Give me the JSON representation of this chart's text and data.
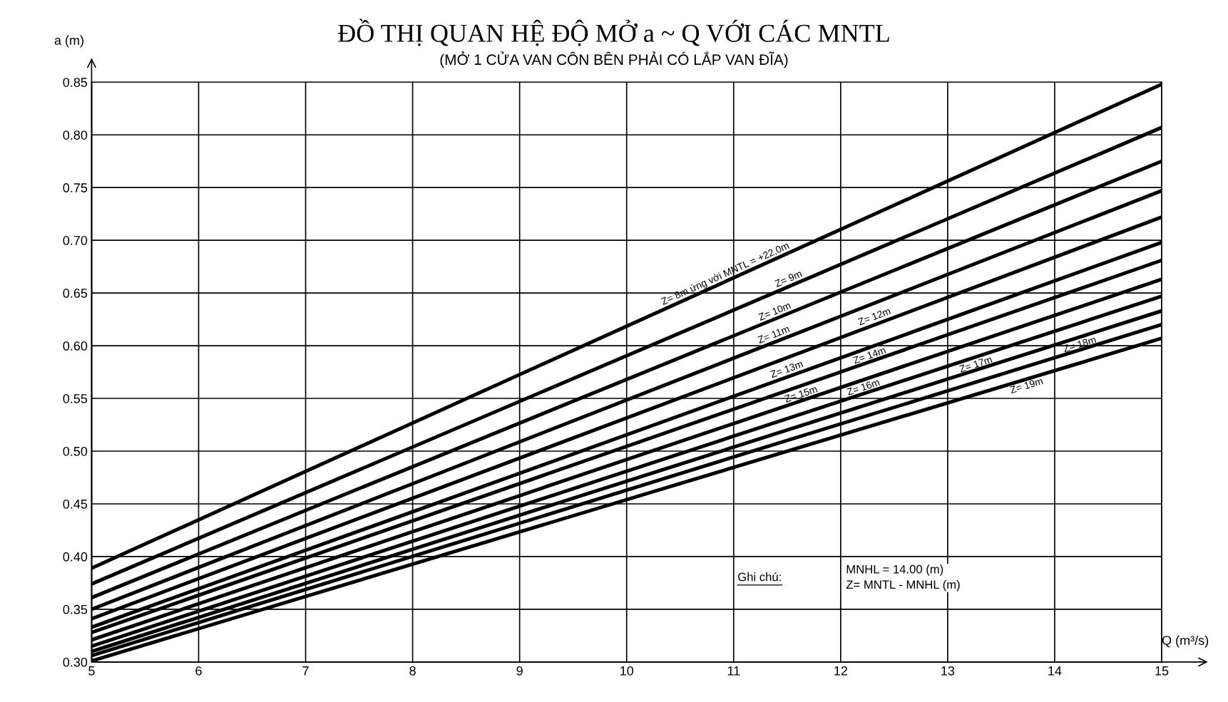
{
  "chart_data": {
    "type": "line",
    "title": "ĐỒ THỊ QUAN HỆ ĐỘ MỞ a ~ Q VỚI CÁC MNTL",
    "subtitle": "(MỞ 1 CỬA VAN CÔN BÊN PHẢI CÓ LẮP VAN ĐĨA)",
    "xlabel": "Q (m³/s)",
    "ylabel": "a (m)",
    "x": [
      5,
      15
    ],
    "series": [
      {
        "color": "#000000",
        "values": [
          0.389,
          0.848
        ]
      },
      {
        "color": "#000000",
        "values": [
          0.374,
          0.807
        ]
      },
      {
        "color": "#000000",
        "values": [
          0.361,
          0.775
        ]
      },
      {
        "color": "#000000",
        "values": [
          0.35,
          0.747
        ]
      },
      {
        "color": "#000000",
        "values": [
          0.341,
          0.722
        ]
      },
      {
        "color": "#000000",
        "values": [
          0.333,
          0.698
        ]
      },
      {
        "color": "#000000",
        "values": [
          0.328,
          0.681
        ]
      },
      {
        "color": "#000000",
        "values": [
          0.321,
          0.663
        ]
      },
      {
        "color": "#000000",
        "values": [
          0.315,
          0.647
        ]
      },
      {
        "color": "#000000",
        "values": [
          0.31,
          0.633
        ]
      },
      {
        "color": "#000000",
        "values": [
          0.306,
          0.62
        ]
      },
      {
        "color": "#000000",
        "values": [
          0.301,
          0.607
        ]
      }
    ],
    "annotations": [
      {
        "text": "Z= 8m ứng với MNTL = +22,0m",
        "x": 10.95,
        "y": 0.662
      },
      {
        "text": "Z= 9m",
        "x": 11.54,
        "y": 0.657
      },
      {
        "text": "Z= 10m",
        "x": 11.41,
        "y": 0.626
      },
      {
        "text": "Z= 11m",
        "x": 11.4,
        "y": 0.604
      },
      {
        "text": "Z= 12m",
        "x": 12.34,
        "y": 0.621
      },
      {
        "text": "Z= 13m",
        "x": 11.52,
        "y": 0.571
      },
      {
        "text": "Z= 14m",
        "x": 12.29,
        "y": 0.585
      },
      {
        "text": "Z= 15m",
        "x": 11.65,
        "y": 0.548
      },
      {
        "text": "Z= 16m",
        "x": 12.23,
        "y": 0.555
      },
      {
        "text": "Z= 17m",
        "x": 13.28,
        "y": 0.577
      },
      {
        "text": "Z= 18m",
        "x": 14.25,
        "y": 0.596
      },
      {
        "text": "Z= 19m",
        "x": 13.72,
        "y": 0.568
      },
      "Ghi chú:",
      "MNHL = 14.00 (m)\nZ= MNTL - MNHL (m)"
    ],
    "xlim": [
      5,
      15
    ],
    "ylim": [
      0.3,
      0.85
    ],
    "xticks": [
      5,
      6,
      7,
      8,
      9,
      10,
      11,
      12,
      13,
      14,
      15
    ],
    "yticks": [
      {
        "value": 0.3,
        "label": "0.30"
      },
      {
        "value": 0.35,
        "label": "0.35"
      },
      {
        "value": 0.4,
        "label": "0.40"
      },
      {
        "value": 0.45,
        "label": "0.45"
      },
      {
        "value": 0.5,
        "label": "0.50"
      },
      {
        "value": 0.55,
        "label": "0.55"
      },
      {
        "value": 0.6,
        "label": "0.60"
      },
      {
        "value": 0.65,
        "label": "0.65"
      },
      {
        "value": 0.7,
        "label": "0.70"
      },
      {
        "value": 0.75,
        "label": "0.75"
      },
      {
        "value": 0.8,
        "label": "0.80"
      },
      {
        "value": 0.85,
        "label": "0.85"
      }
    ],
    "grid": true,
    "marker": "none",
    "line_style": "solid"
  }
}
